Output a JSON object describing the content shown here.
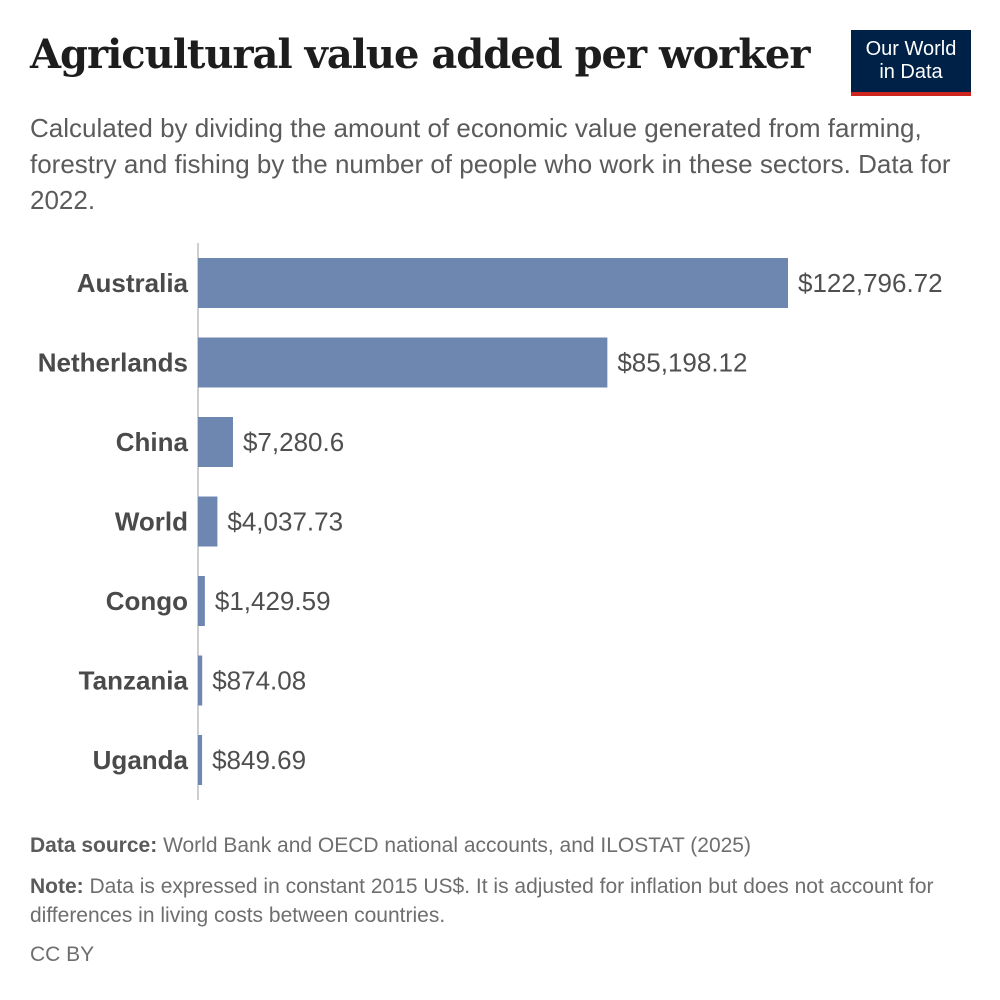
{
  "header": {
    "title": "Agricultural value added per worker",
    "subtitle": "Calculated by dividing the amount of economic value generated from farming, forestry and fishing by the number of people who work in these sectors. Data for 2022.",
    "logo_line1": "Our World",
    "logo_line2": "in Data"
  },
  "footer": {
    "source_label": "Data source:",
    "source_text": "World Bank and OECD national accounts, and ILOSTAT (2025)",
    "note_label": "Note:",
    "note_text": "Data is expressed in constant 2015 US$. It is adjusted for inflation but does not account for differences in living costs between countries.",
    "license": "CC BY"
  },
  "colors": {
    "bar": "#6d87b0",
    "logo_bg": "#002147",
    "logo_accent": "#ce261e"
  },
  "chart_data": {
    "type": "bar",
    "orientation": "horizontal",
    "categories": [
      "Australia",
      "Netherlands",
      "China",
      "World",
      "Congo",
      "Tanzania",
      "Uganda"
    ],
    "values": [
      122796.72,
      85198.12,
      7280.6,
      4037.73,
      1429.59,
      874.08,
      849.69
    ],
    "value_labels": [
      "$122,796.72",
      "$85,198.12",
      "$7,280.6",
      "$4,037.73",
      "$1,429.59",
      "$874.08",
      "$849.69"
    ],
    "xlim": [
      0,
      122796.72
    ],
    "grid": false,
    "legend": "none"
  }
}
